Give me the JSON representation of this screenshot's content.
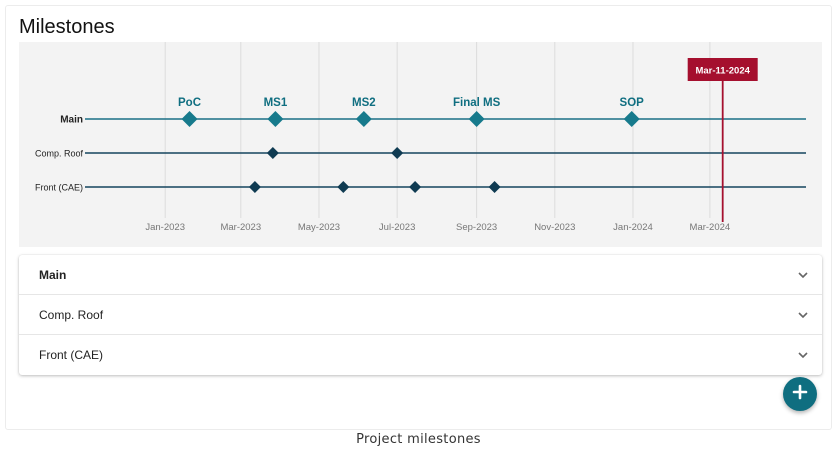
{
  "page": {
    "title": "Milestones",
    "caption": "Project milestones"
  },
  "colors": {
    "main_line": "#1a6f86",
    "main_marker": "#177a8c",
    "main_label": "#0f6e80",
    "sub_line": "#15455e",
    "sub_marker": "#0f3b52",
    "today_line": "#a50f2e",
    "grid": "#dcdcdc",
    "fab": "#0f6e80"
  },
  "timeline": {
    "start": "2022-11-01",
    "end": "2024-05-15",
    "today": {
      "date": "2024-03-11",
      "label": "Mar-11-2024"
    },
    "ticks": [
      {
        "date": "2023-01-01",
        "label": "Jan-2023"
      },
      {
        "date": "2023-03-01",
        "label": "Mar-2023"
      },
      {
        "date": "2023-05-01",
        "label": "May-2023"
      },
      {
        "date": "2023-07-01",
        "label": "Jul-2023"
      },
      {
        "date": "2023-09-01",
        "label": "Sep-2023"
      },
      {
        "date": "2023-11-01",
        "label": "Nov-2023"
      },
      {
        "date": "2024-01-01",
        "label": "Jan-2024"
      },
      {
        "date": "2024-03-01",
        "label": "Mar-2024"
      }
    ],
    "rows": [
      {
        "label": "Main",
        "bold": true,
        "kind": "main",
        "milestones": [
          {
            "date": "2023-01-20",
            "label": "PoC"
          },
          {
            "date": "2023-03-28",
            "label": "MS1"
          },
          {
            "date": "2023-06-05",
            "label": "MS2"
          },
          {
            "date": "2023-09-01",
            "label": "Final MS"
          },
          {
            "date": "2023-12-31",
            "label": "SOP"
          }
        ]
      },
      {
        "label": "Comp. Roof",
        "bold": false,
        "kind": "sub",
        "milestones": [
          {
            "date": "2023-03-26"
          },
          {
            "date": "2023-07-01"
          }
        ]
      },
      {
        "label": "Front (CAE)",
        "bold": false,
        "kind": "sub",
        "milestones": [
          {
            "date": "2023-03-12"
          },
          {
            "date": "2023-05-20"
          },
          {
            "date": "2023-07-15"
          },
          {
            "date": "2023-09-15"
          }
        ]
      }
    ]
  },
  "accordion": {
    "items": [
      {
        "label": "Main",
        "bold": true,
        "icon": "chevron-down-icon"
      },
      {
        "label": "Comp. Roof",
        "bold": false,
        "icon": "chevron-down-icon"
      },
      {
        "label": "Front (CAE)",
        "bold": false,
        "icon": "chevron-down-icon"
      }
    ]
  },
  "fab": {
    "icon": "plus-icon"
  }
}
